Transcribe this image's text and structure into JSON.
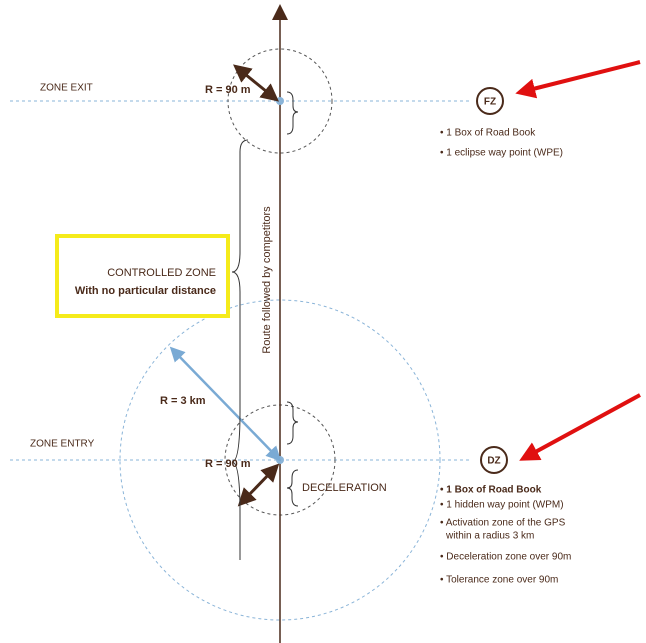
{
  "zone_exit": {
    "label": "ZONE EXIT",
    "radius": "R = 90 m",
    "code": "FZ",
    "items": [
      "• 1 Box of Road Book",
      "• 1 eclipse way point (WPE)"
    ]
  },
  "controlled_zone": {
    "title": "CONTROLLED ZONE",
    "subtitle": "With no particular distance"
  },
  "route": "Route followed by competitors",
  "activation_radius": "R = 3 km",
  "zone_entry": {
    "label": "ZONE ENTRY",
    "radius": "R = 90 m",
    "code": "DZ",
    "deceleration": "DECELERATION",
    "items": [
      "• 1 Box of Road Book",
      "• 1 hidden way point (WPM)",
      "• Activation zone of the GPS",
      "within a radius 3 km",
      "• Deceleration zone over 90m",
      "• Tolerance zone over 90m"
    ]
  }
}
